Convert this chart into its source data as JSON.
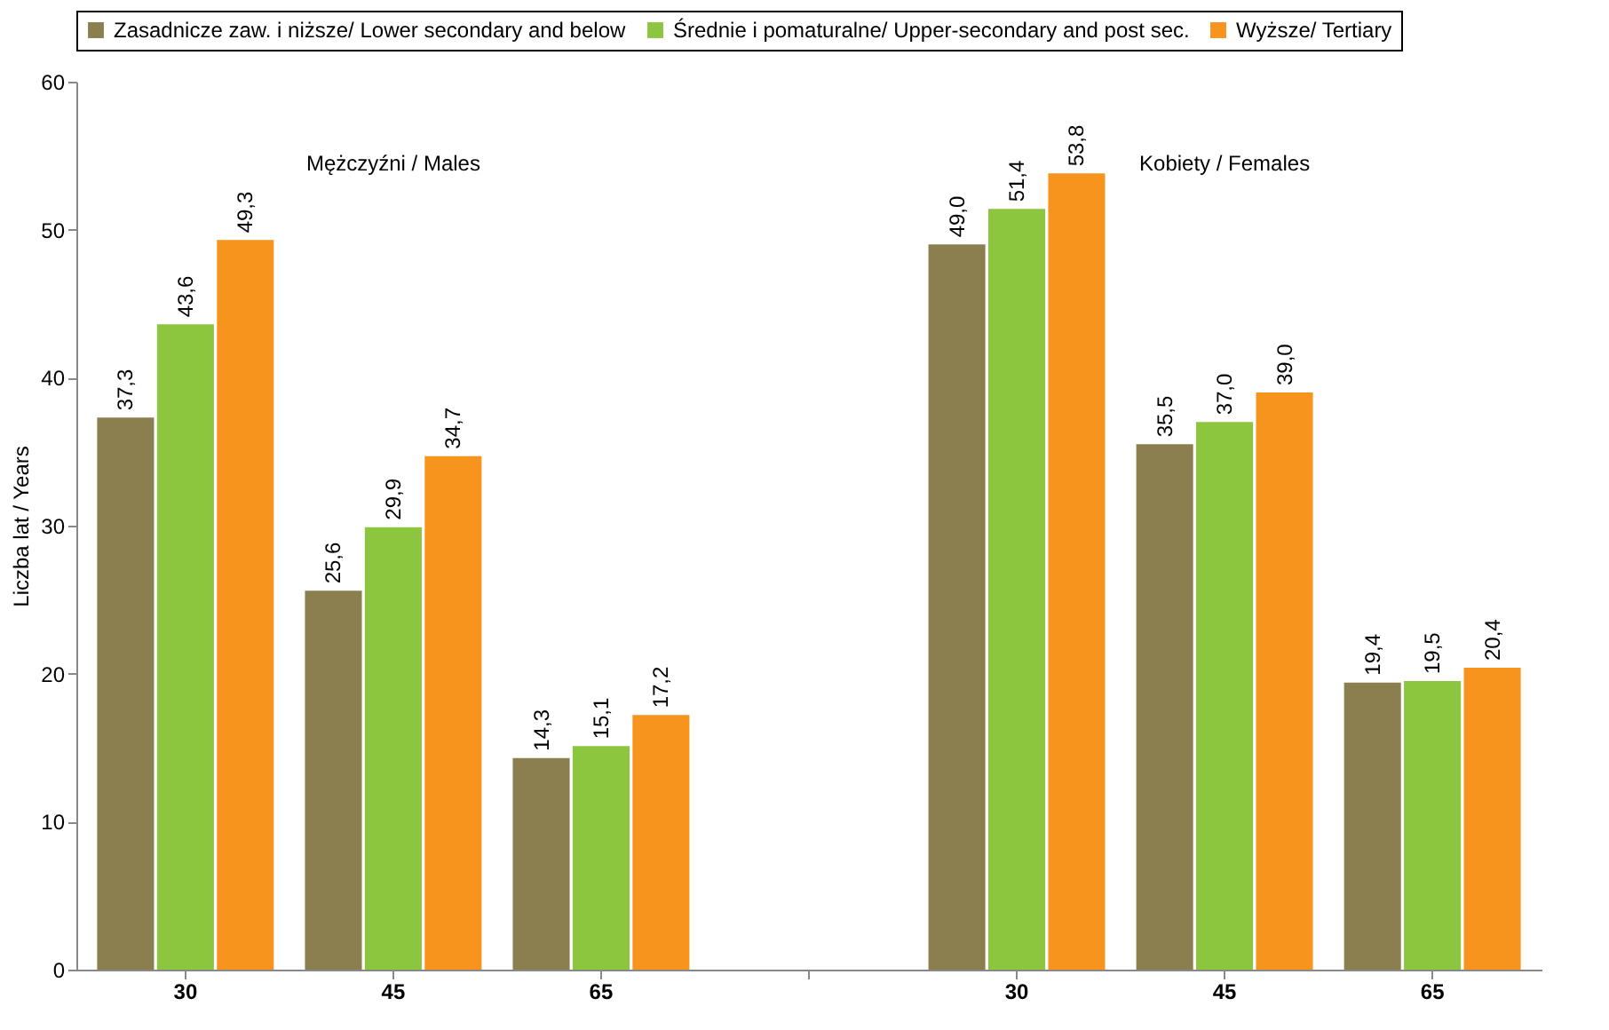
{
  "chart_data": {
    "type": "bar",
    "ylabel": "Liczba lat / Years",
    "categories": [
      "30",
      "45",
      "65",
      null,
      "30",
      "45",
      "65"
    ],
    "series": [
      {
        "name": "Zasadnicze zaw. i niższe/ Lower secondary and below",
        "color": "#8c7f4f",
        "values": [
          37.3,
          25.6,
          14.3,
          null,
          49.0,
          35.5,
          19.4
        ],
        "value_labels": [
          "37,3",
          "25,6",
          "14,3",
          null,
          "49,0",
          "35,5",
          "19,4"
        ]
      },
      {
        "name": "Średnie i pomaturalne/ Upper-secondary and post sec.",
        "color": "#8cc63f",
        "values": [
          43.6,
          29.9,
          15.1,
          null,
          51.4,
          37.0,
          19.5
        ],
        "value_labels": [
          "43,6",
          "29,9",
          "15,1",
          null,
          "51,4",
          "37,0",
          "19,5"
        ]
      },
      {
        "name": "Wyższe/ Tertiary",
        "color": "#f7941d",
        "values": [
          49.3,
          34.7,
          17.2,
          null,
          53.8,
          39.0,
          20.4
        ],
        "value_labels": [
          "49,3",
          "34,7",
          "17,2",
          null,
          "53,8",
          "39,0",
          "20,4"
        ]
      }
    ],
    "annotations": [
      "Mężczyźni / Males",
      "Kobiety / Females"
    ],
    "ylim": [
      0,
      60
    ],
    "yticks": [
      0,
      10,
      20,
      30,
      40,
      50,
      60
    ],
    "grid": false,
    "legend": "top"
  }
}
